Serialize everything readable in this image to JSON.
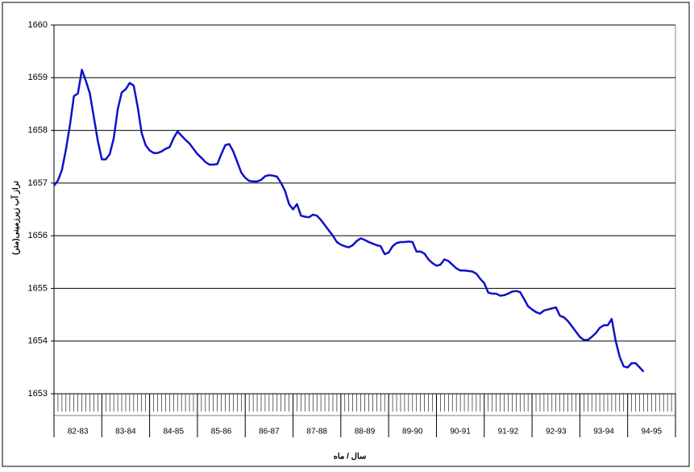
{
  "chart_data": {
    "type": "line",
    "y_label": "تراز آب زیرزمینی(متر)",
    "x_label": "سال / ماه",
    "x_groups": [
      "82-83",
      "83-84",
      "84-85",
      "85-86",
      "86-87",
      "87-88",
      "88-89",
      "89-90",
      "90-91",
      "91-92",
      "92-93",
      "93-94",
      "94-95"
    ],
    "categories": [
      null,
      null,
      null,
      null,
      null,
      null,
      null,
      null,
      null,
      null,
      null,
      null,
      null,
      null,
      null,
      null,
      null,
      null,
      null,
      null,
      null,
      null,
      null,
      null,
      null,
      null,
      null,
      null,
      null,
      null,
      null,
      null,
      null,
      null,
      null,
      null,
      null,
      null,
      null,
      null,
      null,
      null,
      null,
      null,
      null,
      null,
      null,
      null,
      null,
      null,
      null,
      null,
      null,
      null,
      null,
      null,
      null,
      null,
      null,
      null,
      null,
      null,
      null,
      null,
      null,
      null,
      null,
      null,
      null,
      null,
      null,
      null,
      null,
      null,
      null,
      null,
      null,
      null,
      null,
      null,
      null,
      null,
      null,
      null,
      null,
      null,
      null,
      null,
      null,
      null,
      null,
      null,
      null,
      null,
      null,
      null,
      null,
      null,
      null,
      null,
      null,
      null,
      null,
      null,
      null,
      null,
      null,
      null,
      null,
      null,
      null,
      null,
      null,
      null,
      null,
      null,
      null,
      null,
      null,
      null,
      null,
      null,
      null,
      null,
      null,
      null,
      null,
      null,
      null,
      null,
      null,
      null,
      null,
      null,
      null,
      null,
      null,
      null,
      null,
      null,
      null,
      null,
      null,
      null,
      null,
      null,
      null,
      null,
      null,
      null,
      null,
      null,
      null,
      null,
      null,
      null
    ],
    "series": [
      {
        "color": "#1010c8",
        "values": [
          1656.95,
          1657.05,
          1657.25,
          1657.64,
          1658.1,
          1658.65,
          1658.7,
          1659.15,
          1658.94,
          1658.7,
          1658.25,
          1657.8,
          1657.45,
          1657.45,
          1657.55,
          1657.85,
          1658.4,
          1658.72,
          1658.78,
          1658.9,
          1658.85,
          1658.45,
          1657.95,
          1657.72,
          1657.62,
          1657.57,
          1657.57,
          1657.6,
          1657.65,
          1657.68,
          1657.85,
          1657.98,
          1657.9,
          1657.82,
          1657.75,
          1657.65,
          1657.55,
          1657.48,
          1657.4,
          1657.35,
          1657.35,
          1657.36,
          1657.55,
          1657.72,
          1657.74,
          1657.6,
          1657.4,
          1657.2,
          1657.1,
          1657.04,
          1657.03,
          1657.03,
          1657.06,
          1657.13,
          1657.15,
          1657.14,
          1657.12,
          1657.0,
          1656.85,
          1656.6,
          1656.5,
          1656.6,
          1656.38,
          1656.36,
          1656.35,
          1656.4,
          1656.38,
          1656.3,
          1656.2,
          1656.1,
          1656.0,
          1655.88,
          1655.83,
          1655.8,
          1655.78,
          1655.82,
          1655.9,
          1655.95,
          1655.92,
          1655.88,
          1655.85,
          1655.82,
          1655.8,
          1655.65,
          1655.68,
          1655.8,
          1655.86,
          1655.88,
          1655.88,
          1655.89,
          1655.88,
          1655.7,
          1655.7,
          1655.66,
          1655.55,
          1655.48,
          1655.43,
          1655.45,
          1655.55,
          1655.52,
          1655.45,
          1655.38,
          1655.34,
          1655.34,
          1655.33,
          1655.32,
          1655.28,
          1655.18,
          1655.1,
          1654.92,
          1654.9,
          1654.9,
          1654.86,
          1654.87,
          1654.9,
          1654.94,
          1654.95,
          1654.93,
          1654.8,
          1654.66,
          1654.6,
          1654.55,
          1654.52,
          1654.58,
          1654.6,
          1654.62,
          1654.64,
          1654.48,
          1654.45,
          1654.38,
          1654.28,
          1654.18,
          1654.08,
          1654.02,
          1654.02,
          1654.08,
          1654.15,
          1654.25,
          1654.3,
          1654.3,
          1654.42,
          1654.0,
          1653.7,
          1653.52,
          1653.5,
          1653.58,
          1653.58,
          1653.5,
          1653.42,
          null,
          null,
          null,
          null,
          null,
          null,
          null
        ]
      }
    ],
    "ylim": [
      1653,
      1660
    ],
    "yticks": [
      1653,
      1654,
      1655,
      1656,
      1657,
      1658,
      1659,
      1660
    ],
    "grid": true
  }
}
